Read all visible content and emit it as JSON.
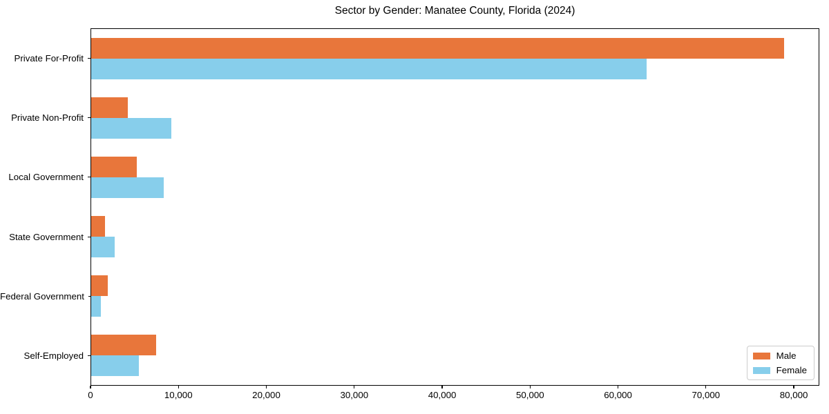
{
  "chart_data": {
    "type": "bar",
    "orientation": "horizontal",
    "title": "Sector by Gender: Manatee County, Florida (2024)",
    "xlabel": "",
    "ylabel": "",
    "grid": false,
    "categories": [
      "Private For-Profit",
      "Private Non-Profit",
      "Local Government",
      "State Government",
      "Federal Government",
      "Self-Employed"
    ],
    "series": [
      {
        "name": "Male",
        "color": "#e8763b",
        "values": [
          79000,
          4200,
          5200,
          1600,
          1900,
          7400
        ]
      },
      {
        "name": "Female",
        "color": "#87ceeb",
        "values": [
          63300,
          9100,
          8300,
          2700,
          1100,
          5400
        ]
      }
    ],
    "xlim": [
      0,
      82900
    ],
    "x_ticks": [
      {
        "value": 0,
        "label": "0"
      },
      {
        "value": 10000,
        "label": "10,000"
      },
      {
        "value": 20000,
        "label": "20,000"
      },
      {
        "value": 30000,
        "label": "30,000"
      },
      {
        "value": 40000,
        "label": "40,000"
      },
      {
        "value": 50000,
        "label": "50,000"
      },
      {
        "value": 60000,
        "label": "60,000"
      },
      {
        "value": 70000,
        "label": "70,000"
      },
      {
        "value": 80000,
        "label": "80,000"
      }
    ],
    "legend": {
      "position": "lower right"
    }
  }
}
